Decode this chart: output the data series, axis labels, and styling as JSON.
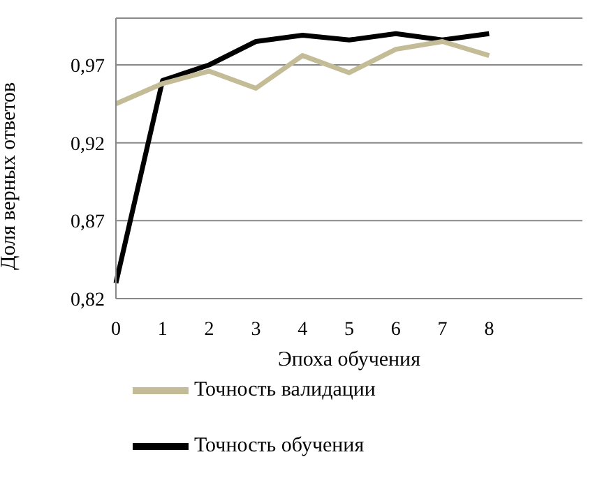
{
  "chart_data": {
    "type": "line",
    "xlabel": "Эпоха обучения",
    "ylabel": "Доля верных ответов",
    "categories": [
      "0",
      "1",
      "2",
      "3",
      "4",
      "5",
      "6",
      "7",
      "8",
      null,
      null
    ],
    "series": [
      {
        "name": "Точность обучения",
        "color": "#000000",
        "values": [
          0.83,
          0.96,
          0.97,
          0.985,
          0.989,
          0.986,
          0.99,
          0.986,
          0.99,
          null,
          null
        ]
      },
      {
        "name": "Точность валидации",
        "color": "#c4bc96",
        "values": [
          0.945,
          0.958,
          0.966,
          0.955,
          0.976,
          0.965,
          0.98,
          0.985,
          0.976,
          null,
          null
        ]
      }
    ],
    "ylim": [
      0.82,
      1.0
    ],
    "yticks": [
      {
        "value": 0.82,
        "label": "0,82"
      },
      {
        "value": 0.87,
        "label": "0,87"
      },
      {
        "value": 0.92,
        "label": "0,92"
      },
      {
        "value": 0.97,
        "label": "0,97"
      }
    ],
    "grid": "y",
    "legend": "bottom",
    "marker": "none",
    "line_style": "solid"
  }
}
